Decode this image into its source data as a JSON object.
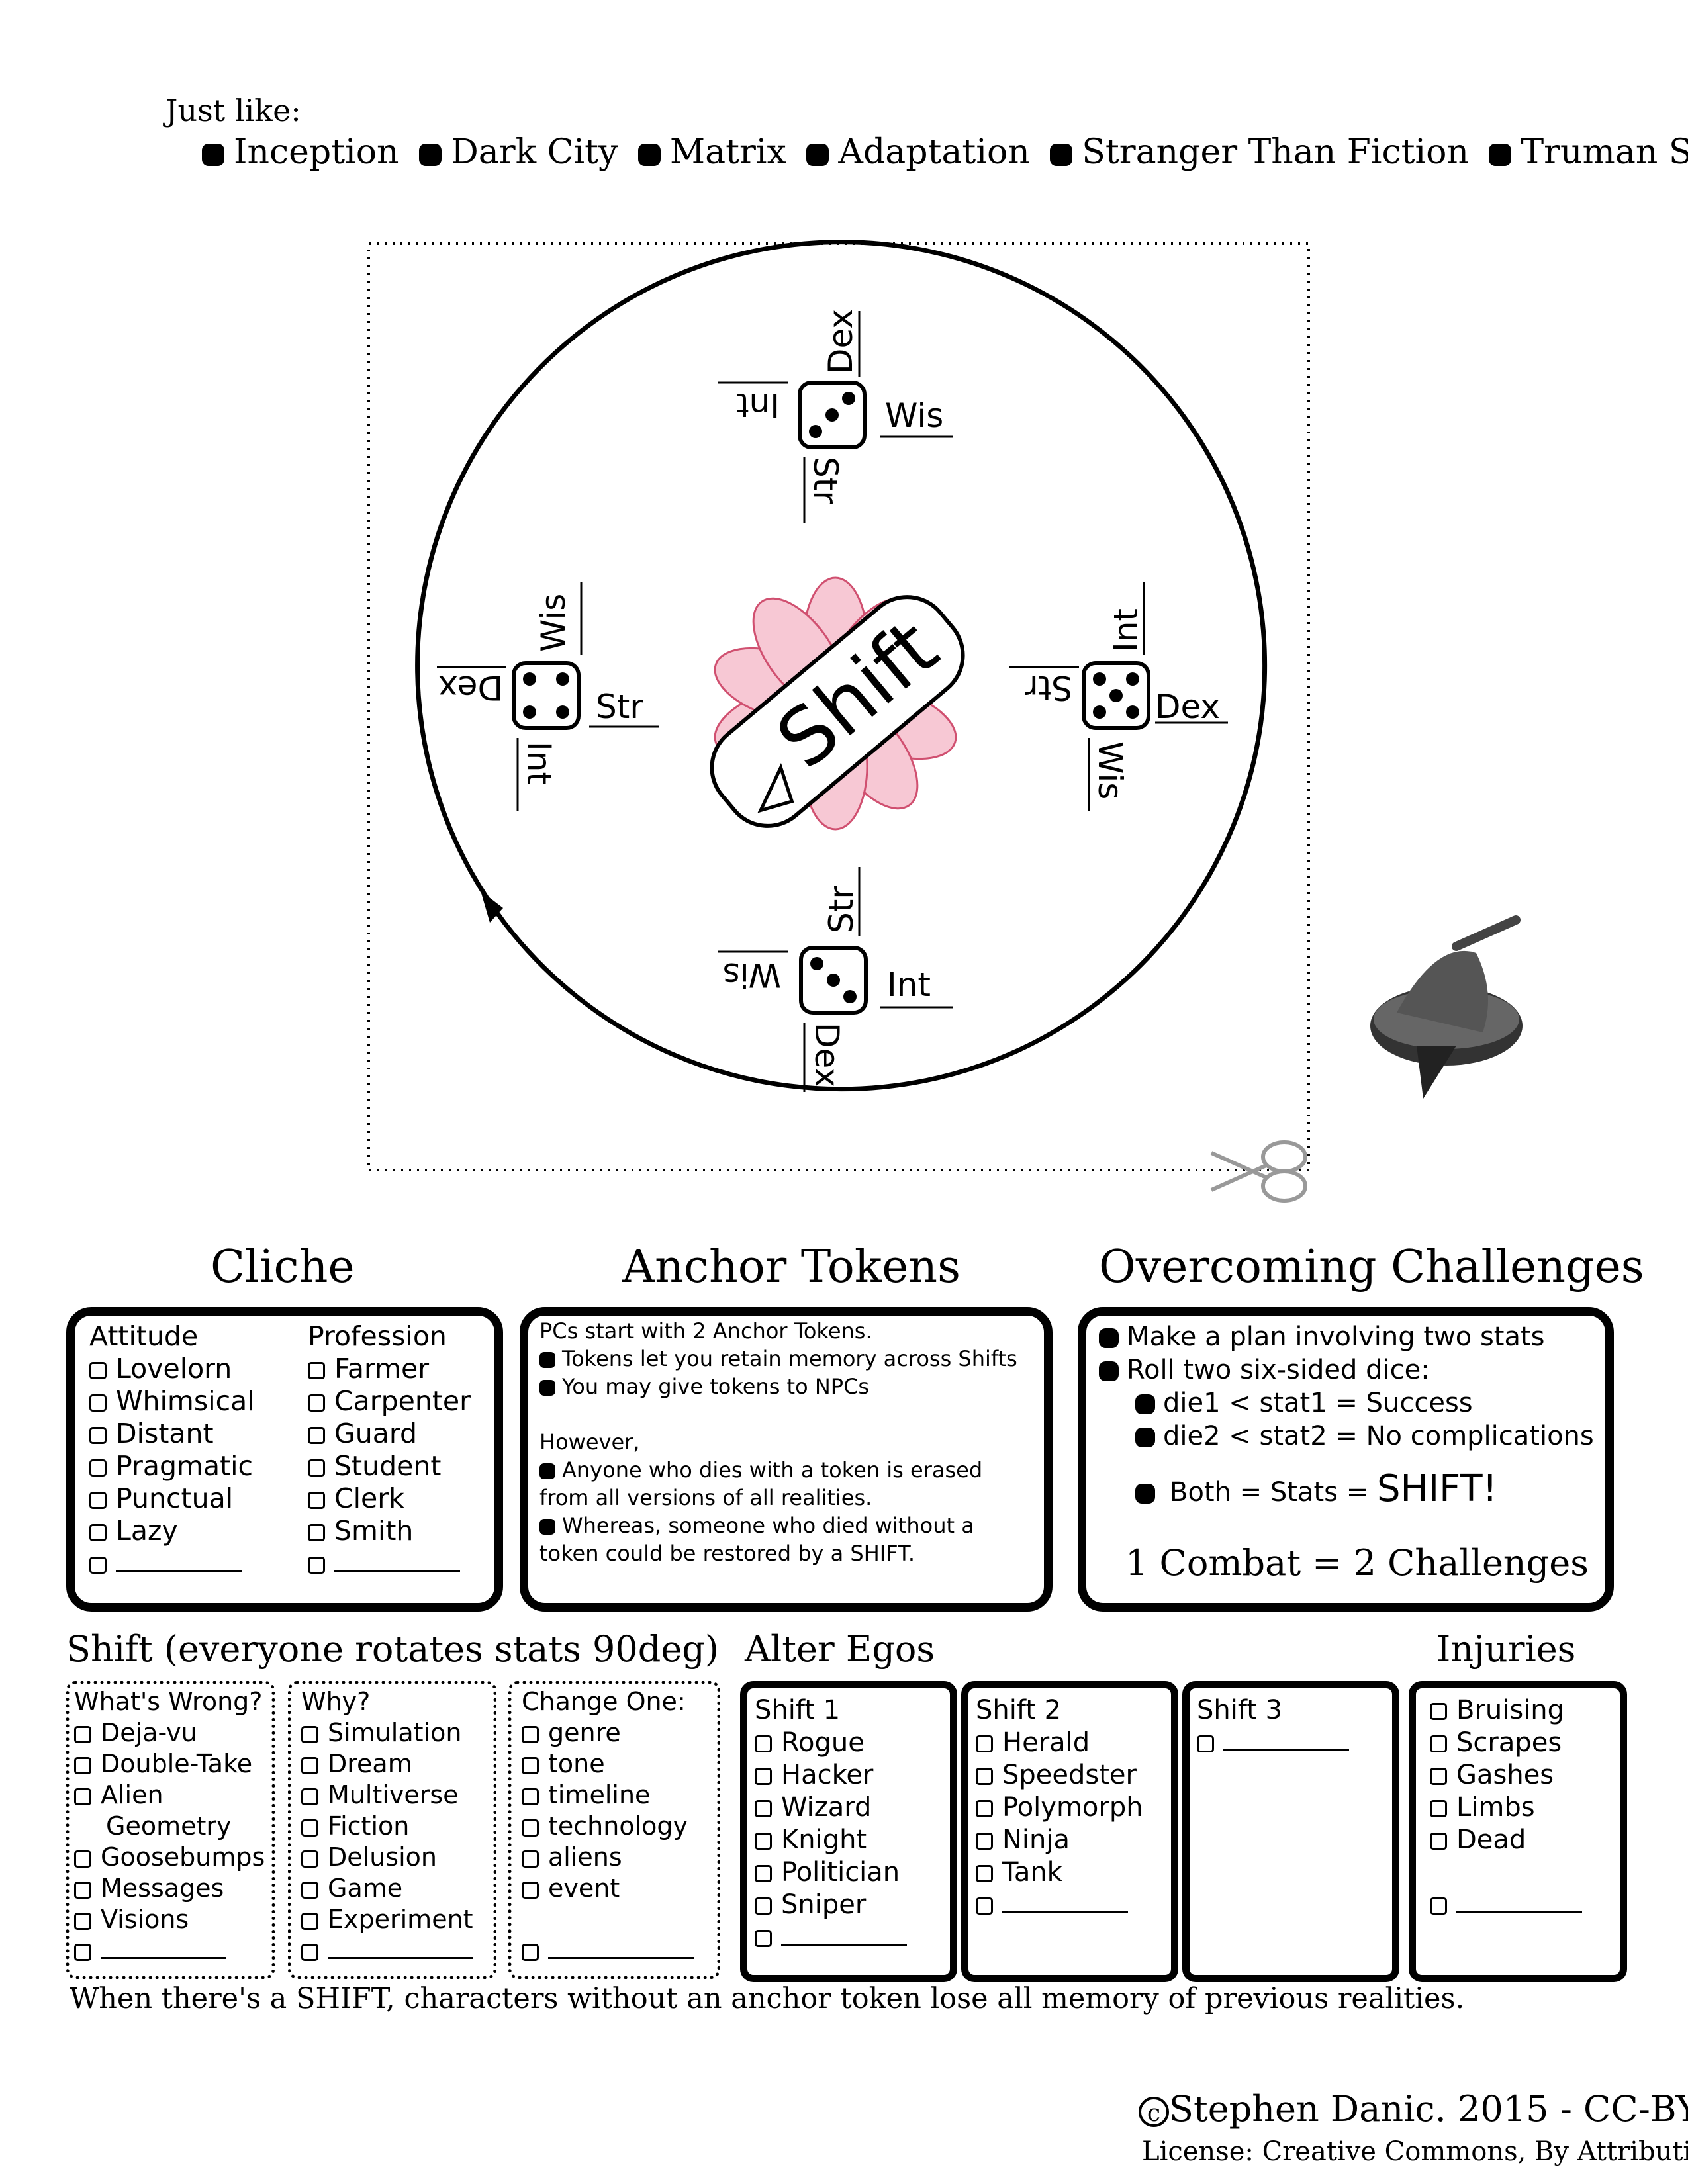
{
  "just_like": {
    "label": "Just like:",
    "items": [
      "Inception",
      "Dark City",
      "Matrix",
      "Adaptation",
      "Stranger Than Fiction",
      "Truman Show"
    ]
  },
  "wheel": {
    "logo": "Shift",
    "top": {
      "top": "Dex",
      "left": "Int",
      "right": "Wis",
      "bottom": "Str"
    },
    "right": {
      "top": "Int",
      "left": "Str",
      "right": "Dex",
      "bottom": "Wis"
    },
    "bottom": {
      "top": "Str",
      "left": "Wis",
      "right": "Int",
      "bottom": "Dex"
    },
    "left": {
      "top": "Wis",
      "left": "Dex",
      "right": "Str",
      "bottom": "Int"
    }
  },
  "cliche": {
    "title": "Cliche",
    "attitude_header": "Attitude",
    "attitude": [
      "Lovelorn",
      "Whimsical",
      "Distant",
      "Pragmatic",
      "Punctual",
      "Lazy"
    ],
    "profession_header": "Profession",
    "profession": [
      "Farmer",
      "Carpenter",
      "Guard",
      "Student",
      "Clerk",
      "Smith"
    ]
  },
  "anchor": {
    "title": "Anchor Tokens",
    "intro": "PCs start with 2 Anchor Tokens.",
    "bullets": [
      "Tokens let you retain memory across Shifts",
      "You may give tokens to NPCs"
    ],
    "however": "However,",
    "b3": "Anyone who dies with a token is erased",
    "b3b": "from all versions of all realities.",
    "b4": "Whereas, someone who died without a",
    "b4b": "token could be restored by a SHIFT."
  },
  "challenges": {
    "title": "Overcoming Challenges",
    "b1": "Make a plan involving two stats",
    "b2": "Roll two six-sided dice:",
    "b3": "die1 < stat1 = Success",
    "b4": "die2 < stat2 = No complications",
    "b5": "Both = Stats = ",
    "b5big": "SHIFT!",
    "combat": "1 Combat = 2 Challenges"
  },
  "shift": {
    "title": "Shift (everyone rotates stats 90deg)",
    "wrong_header": "What's Wrong?",
    "wrong": [
      "Deja-vu",
      "Double-Take",
      "Alien",
      "Geometry",
      "Goosebumps",
      "Messages",
      "Visions"
    ],
    "why_header": "Why?",
    "why": [
      "Simulation",
      "Dream",
      "Multiverse",
      "Fiction",
      "Delusion",
      "Game",
      "Experiment"
    ],
    "change_header": "Change One:",
    "change": [
      "genre",
      "tone",
      "timeline",
      "technology",
      "aliens",
      "event"
    ]
  },
  "alter": {
    "title": "Alter Egos",
    "s1_header": "Shift 1",
    "s1": [
      "Rogue",
      "Hacker",
      "Wizard",
      "Knight",
      "Politician",
      "Sniper"
    ],
    "s2_header": "Shift 2",
    "s2": [
      "Herald",
      "Speedster",
      "Polymorph",
      "Ninja",
      "Tank"
    ],
    "s3_header": "Shift 3"
  },
  "injuries": {
    "title": "Injuries",
    "items": [
      "Bruising",
      "Scrapes",
      "Gashes",
      "Limbs",
      "Dead"
    ]
  },
  "footer": {
    "note": "When there's a SHIFT, characters without an anchor token lose all memory of previous realities.",
    "copyright_symbol": "c",
    "copyright": "Stephen Danic. 2015 - CC-BY",
    "license": "License: Creative Commons, By Attribution"
  }
}
